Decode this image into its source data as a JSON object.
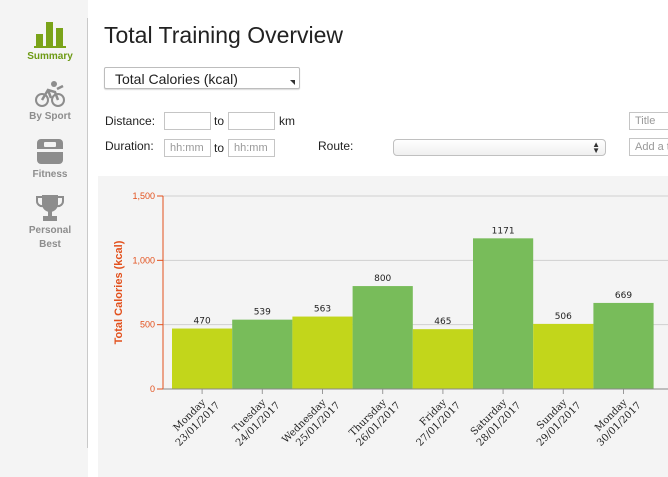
{
  "sidebar": {
    "items": [
      {
        "label": "Summary",
        "icon": "bar-chart-icon",
        "active": true
      },
      {
        "label": "By Sport",
        "icon": "triathlon-icon",
        "active": false
      },
      {
        "label": "Fitness",
        "icon": "scale-icon",
        "active": false
      },
      {
        "label": "Personal Best",
        "label_line1": "Personal",
        "label_line2": "Best",
        "icon": "trophy-icon",
        "active": false
      }
    ],
    "active_color": "#6d9a14"
  },
  "header": {
    "title": "Total Training Overview"
  },
  "metric_select": {
    "value": "Total Calories (kcal)"
  },
  "filters": {
    "distance_label": "Distance:",
    "to_label": "to",
    "km_label": "km",
    "duration_label": "Duration:",
    "duration_from_placeholder": "hh:mm",
    "duration_to_placeholder": "hh:mm",
    "route_label": "Route:",
    "title_placeholder": "Title",
    "tag_placeholder": "Add a t"
  },
  "chart_data": {
    "type": "bar",
    "ylabel": "Total Calories (kcal)",
    "ylim": [
      0,
      1500
    ],
    "yticks": [
      "0",
      "500",
      "1,000",
      "1,500"
    ],
    "grid": true,
    "categories": [
      {
        "day": "Monday",
        "date": "23/01/2017"
      },
      {
        "day": "Tuesday",
        "date": "24/01/2017"
      },
      {
        "day": "Wednesday",
        "date": "25/01/2017"
      },
      {
        "day": "Thursday",
        "date": "26/01/2017"
      },
      {
        "day": "Friday",
        "date": "27/01/2017"
      },
      {
        "day": "Saturday",
        "date": "28/01/2017"
      },
      {
        "day": "Sunday",
        "date": "29/01/2017"
      },
      {
        "day": "Monday",
        "date": "30/01/2017"
      }
    ],
    "values": [
      470,
      539,
      563,
      800,
      465,
      1171,
      506,
      669
    ],
    "value_labels": [
      "470",
      "539",
      "563",
      "800",
      "465",
      "1171",
      "506",
      "669"
    ],
    "colors": [
      "#c2d61b",
      "#78bc5a"
    ],
    "axis_color": "#e2501c"
  }
}
